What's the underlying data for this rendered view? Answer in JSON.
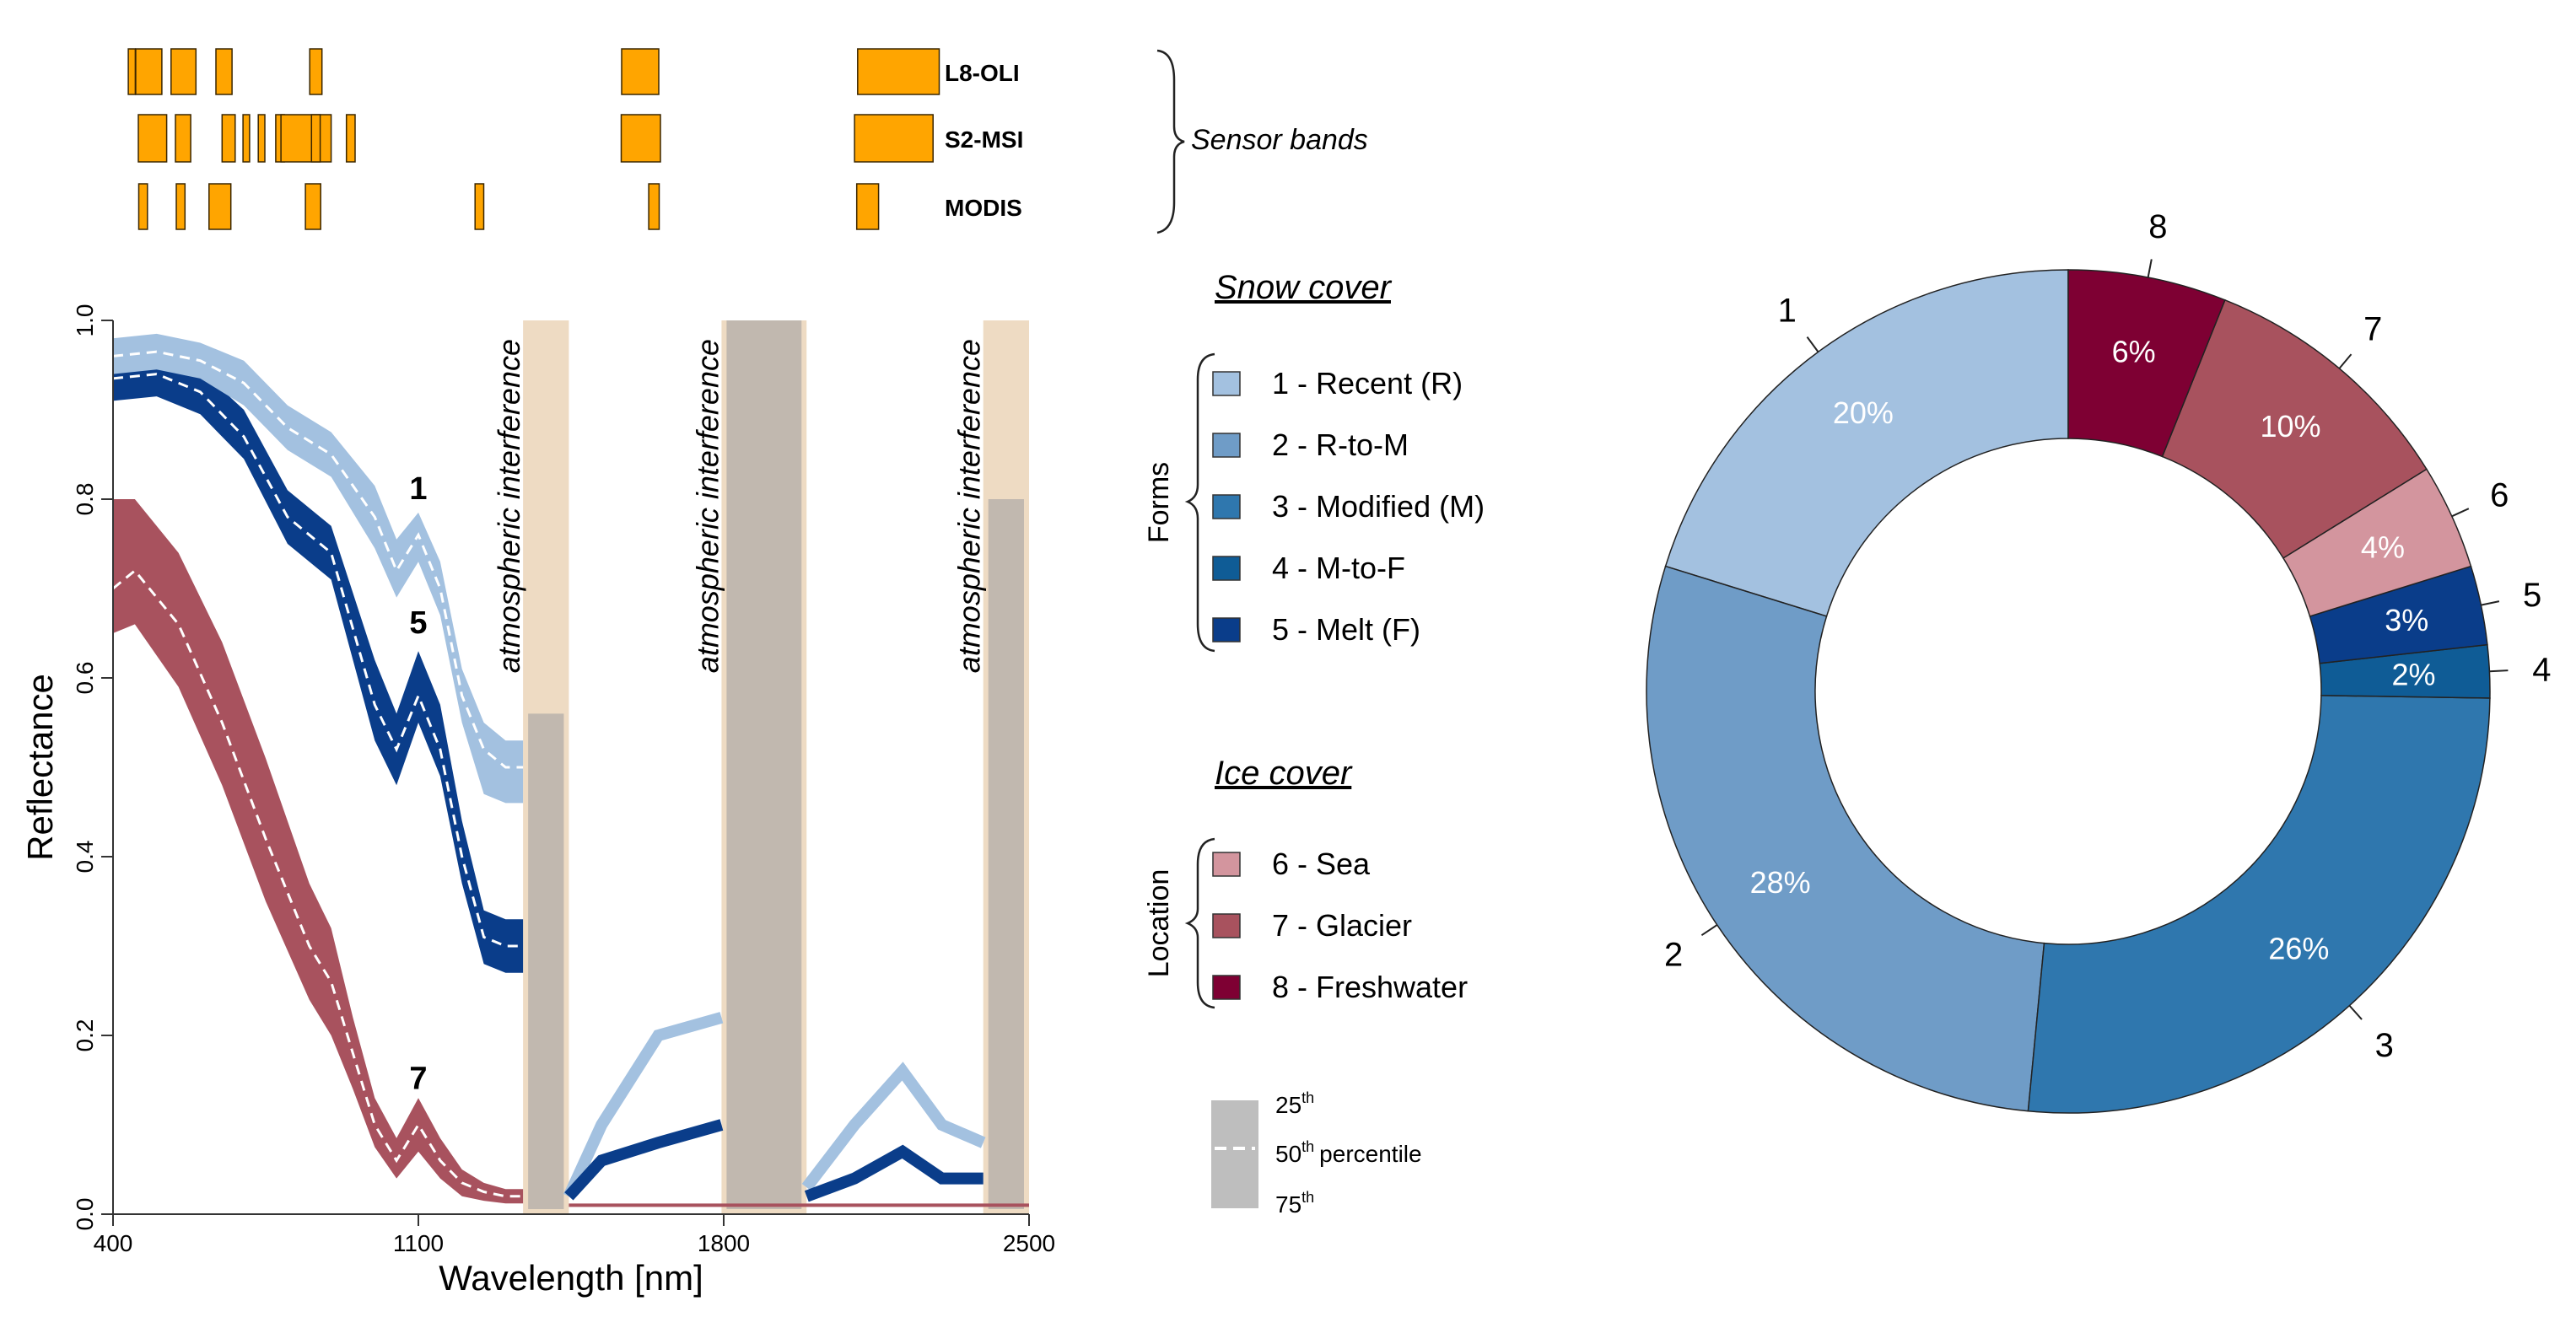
{
  "colors": {
    "band": "#FFA500",
    "band_stroke": "#3a2600",
    "atm": "#EEDBC3",
    "grey": "#8a8f96",
    "recent": "#A3C1E0",
    "r_to_m": "#6F9CC7",
    "modified": "#2F77AE",
    "m_to_f": "#0F5C96",
    "melt": "#0A3D8A",
    "sea": "#D3959E",
    "glacier": "#A8525E",
    "freshwater": "#7E0033"
  },
  "sensors": {
    "title": "Sensor bands",
    "rows": [
      {
        "name": "L8-OLI",
        "bands": [
          [
            435,
            451
          ],
          [
            452,
            512
          ],
          [
            533,
            590
          ],
          [
            636,
            673
          ],
          [
            851,
            879
          ],
          [
            1566,
            1651
          ],
          [
            2107,
            2294
          ]
        ]
      },
      {
        "name": "S2-MSI",
        "bands": [
          [
            458,
            523
          ],
          [
            543,
            578
          ],
          [
            650,
            680
          ],
          [
            698,
            713
          ],
          [
            733,
            748
          ],
          [
            773,
            793
          ],
          [
            785,
            900
          ],
          [
            855,
            875
          ],
          [
            935,
            955
          ],
          [
            1565,
            1655
          ],
          [
            2100,
            2280
          ]
        ]
      },
      {
        "name": "MODIS",
        "bands": [
          [
            459,
            479
          ],
          [
            545,
            565
          ],
          [
            620,
            670
          ],
          [
            841,
            876
          ],
          [
            1230,
            1250
          ],
          [
            1628,
            1652
          ],
          [
            2105,
            2155
          ]
        ]
      }
    ]
  },
  "legend": {
    "snow_title": "Snow cover",
    "snow_group": "Forms",
    "snow_items": [
      {
        "label": "1 - Recent (R)",
        "color": "#A3C1E0"
      },
      {
        "label": "2 - R-to-M",
        "color": "#6F9CC7"
      },
      {
        "label": "3 - Modified (M)",
        "color": "#2F77AE"
      },
      {
        "label": "4 - M-to-F",
        "color": "#0F5C96"
      },
      {
        "label": "5 - Melt (F)",
        "color": "#0A3D8A"
      }
    ],
    "ice_title": "Ice cover",
    "ice_group": "Location",
    "ice_items": [
      {
        "label": "6 - Sea",
        "color": "#D3959E"
      },
      {
        "label": "7 - Glacier",
        "color": "#A8525E"
      },
      {
        "label": "8 - Freshwater",
        "color": "#7E0033"
      }
    ],
    "percentile": {
      "p25": "25",
      "p50": "50",
      "p75": "75",
      "suffix": "th",
      "word": "percentile"
    }
  },
  "chart_data": [
    {
      "type": "area",
      "title": "",
      "xlabel": "Wavelength [nm]",
      "ylabel": "Reflectance",
      "xlim": [
        400,
        2500
      ],
      "ylim": [
        0,
        1
      ],
      "xticks": [
        400,
        1100,
        1800,
        2500
      ],
      "yticks": [
        "0.0",
        "0.2",
        "0.4",
        "0.6",
        "0.8",
        "1.0"
      ],
      "atmospheric_bands": [
        [
          1340,
          1445
        ],
        [
          1795,
          1990
        ],
        [
          2395,
          2500
        ]
      ],
      "atmospheric_label": "atmospheric interference",
      "series": [
        {
          "name": "1",
          "label": "1",
          "label_at": [
            1100,
            0.8
          ],
          "x": [
            400,
            500,
            600,
            700,
            800,
            900,
            1000,
            1050,
            1100,
            1150,
            1200,
            1250,
            1300,
            1340
          ],
          "median": [
            0.96,
            0.965,
            0.955,
            0.93,
            0.88,
            0.85,
            0.78,
            0.72,
            0.76,
            0.7,
            0.58,
            0.52,
            0.5,
            0.5
          ],
          "p25": [
            0.98,
            0.985,
            0.975,
            0.955,
            0.905,
            0.875,
            0.815,
            0.755,
            0.785,
            0.73,
            0.61,
            0.55,
            0.53,
            0.53
          ],
          "p75": [
            0.94,
            0.945,
            0.935,
            0.905,
            0.855,
            0.825,
            0.745,
            0.69,
            0.73,
            0.67,
            0.55,
            0.47,
            0.46,
            0.46
          ]
        },
        {
          "name": "5",
          "label": "5",
          "label_at": [
            1100,
            0.65
          ],
          "x": [
            400,
            500,
            600,
            700,
            800,
            900,
            1000,
            1050,
            1100,
            1150,
            1200,
            1250,
            1300,
            1340
          ],
          "median": [
            0.935,
            0.94,
            0.92,
            0.87,
            0.78,
            0.74,
            0.57,
            0.52,
            0.58,
            0.52,
            0.4,
            0.31,
            0.3,
            0.3
          ],
          "p25": [
            0.955,
            0.96,
            0.945,
            0.9,
            0.81,
            0.77,
            0.62,
            0.56,
            0.63,
            0.57,
            0.44,
            0.34,
            0.33,
            0.33
          ],
          "p75": [
            0.91,
            0.915,
            0.895,
            0.845,
            0.75,
            0.71,
            0.53,
            0.48,
            0.55,
            0.49,
            0.37,
            0.28,
            0.27,
            0.27
          ]
        },
        {
          "name": "7",
          "label": "7",
          "label_at": [
            1100,
            0.14
          ],
          "x": [
            400,
            450,
            550,
            650,
            750,
            850,
            900,
            950,
            1000,
            1050,
            1100,
            1150,
            1200,
            1250,
            1300,
            1340
          ],
          "median": [
            0.7,
            0.72,
            0.66,
            0.55,
            0.42,
            0.3,
            0.26,
            0.18,
            0.1,
            0.06,
            0.1,
            0.06,
            0.035,
            0.025,
            0.02,
            0.02
          ],
          "p25": [
            0.8,
            0.8,
            0.74,
            0.64,
            0.51,
            0.37,
            0.32,
            0.22,
            0.13,
            0.085,
            0.13,
            0.085,
            0.05,
            0.035,
            0.028,
            0.028
          ],
          "p75": [
            0.65,
            0.66,
            0.59,
            0.48,
            0.35,
            0.24,
            0.2,
            0.14,
            0.075,
            0.04,
            0.07,
            0.04,
            0.02,
            0.015,
            0.012,
            0.012
          ]
        }
      ]
    },
    {
      "type": "pie",
      "title": "",
      "categories": [
        "1",
        "2",
        "3",
        "4",
        "5",
        "6",
        "7",
        "8"
      ],
      "values": [
        20,
        28,
        26,
        2,
        3,
        4,
        10,
        6
      ],
      "value_labels": [
        "20%",
        "28%",
        "26%",
        "2%",
        "3%",
        "4%",
        "10%",
        "6%"
      ],
      "colors": [
        "#A3C1E0",
        "#6F9CC7",
        "#2F77AE",
        "#0F5C96",
        "#0A3D8A",
        "#D3959E",
        "#A8525E",
        "#7E0033"
      ]
    }
  ]
}
